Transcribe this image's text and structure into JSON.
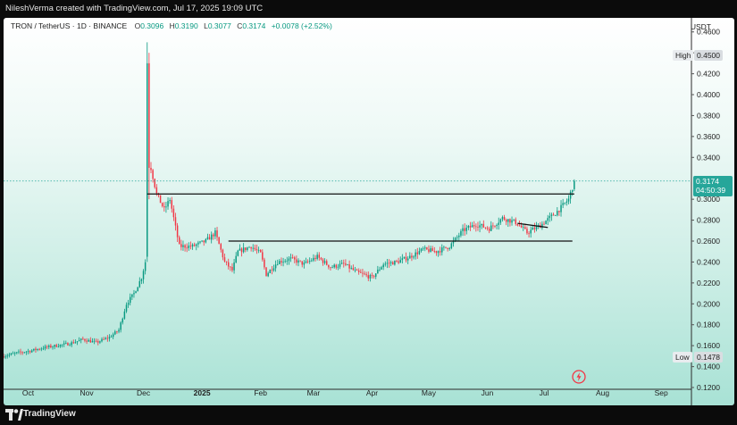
{
  "header": {
    "credit": "NileshVerma created with TradingView.com, Jul 17, 2025 19:09 UTC"
  },
  "legend": {
    "symbol": "TRON / TetherUS · 1D · BINANCE",
    "open_label": "O",
    "open": "0.3096",
    "high_label": "H",
    "high": "0.3190",
    "low_label": "L",
    "low": "0.3077",
    "close_label": "C",
    "close": "0.3174",
    "change": "+0.0078 (+2.52%)"
  },
  "price_axis": {
    "currency": "USDT",
    "ticks": [
      "0.4600",
      "0.4400",
      "0.4200",
      "0.4000",
      "0.3800",
      "0.3600",
      "0.3400",
      "0.3000",
      "0.2800",
      "0.2600",
      "0.2400",
      "0.2200",
      "0.2000",
      "0.1800",
      "0.1600",
      "0.1400",
      "0.1200"
    ]
  },
  "markers": {
    "high_label": "High",
    "high_value": "0.4500",
    "low_label": "Low",
    "low_value": "0.1478",
    "last_price": "0.3174",
    "countdown": "04:50:39"
  },
  "time_axis": {
    "ticks": [
      "Oct",
      "Nov",
      "Dec",
      "2025",
      "Feb",
      "Mar",
      "Apr",
      "May",
      "Jun",
      "Jul",
      "Aug",
      "Sep"
    ]
  },
  "footer": {
    "brand": "TradingView"
  },
  "colors": {
    "up": "#089981",
    "down": "#f23645",
    "last_price": "#26a69a"
  },
  "chart_data": {
    "type": "candlestick",
    "symbol": "TRON / TetherUS",
    "interval": "1D",
    "exchange": "BINANCE",
    "ylim": [
      0.12,
      0.47
    ],
    "x_start": "2024-09-18",
    "x_end": "2025-09-17",
    "last": {
      "date": "2025-07-17",
      "open": 0.3096,
      "high": 0.319,
      "low": 0.3077,
      "close": 0.3174,
      "change": 0.0078,
      "change_pct": 2.52
    },
    "period_high": 0.45,
    "period_low": 0.1478,
    "closes": [
      [
        "2024-09-18",
        0.15
      ],
      [
        "2024-09-25",
        0.153
      ],
      [
        "2024-10-02",
        0.155
      ],
      [
        "2024-10-09",
        0.158
      ],
      [
        "2024-10-16",
        0.16
      ],
      [
        "2024-10-23",
        0.162
      ],
      [
        "2024-10-30",
        0.166
      ],
      [
        "2024-11-06",
        0.163
      ],
      [
        "2024-11-13",
        0.168
      ],
      [
        "2024-11-18",
        0.175
      ],
      [
        "2024-11-22",
        0.2
      ],
      [
        "2024-11-26",
        0.21
      ],
      [
        "2024-11-30",
        0.225
      ],
      [
        "2024-12-02",
        0.24
      ],
      [
        "2024-12-03",
        0.44
      ],
      [
        "2024-12-05",
        0.33
      ],
      [
        "2024-12-08",
        0.305
      ],
      [
        "2024-12-12",
        0.29
      ],
      [
        "2024-12-15",
        0.3
      ],
      [
        "2024-12-20",
        0.255
      ],
      [
        "2024-12-27",
        0.255
      ],
      [
        "2025-01-03",
        0.26
      ],
      [
        "2025-01-08",
        0.268
      ],
      [
        "2025-01-13",
        0.24
      ],
      [
        "2025-01-17",
        0.232
      ],
      [
        "2025-01-20",
        0.25
      ],
      [
        "2025-01-27",
        0.255
      ],
      [
        "2025-02-01",
        0.248
      ],
      [
        "2025-02-04",
        0.228
      ],
      [
        "2025-02-10",
        0.24
      ],
      [
        "2025-02-17",
        0.243
      ],
      [
        "2025-02-24",
        0.238
      ],
      [
        "2025-03-03",
        0.245
      ],
      [
        "2025-03-10",
        0.235
      ],
      [
        "2025-03-17",
        0.238
      ],
      [
        "2025-03-24",
        0.23
      ],
      [
        "2025-04-01",
        0.225
      ],
      [
        "2025-04-07",
        0.238
      ],
      [
        "2025-04-14",
        0.24
      ],
      [
        "2025-04-21",
        0.245
      ],
      [
        "2025-04-28",
        0.252
      ],
      [
        "2025-05-05",
        0.25
      ],
      [
        "2025-05-12",
        0.255
      ],
      [
        "2025-05-19",
        0.27
      ],
      [
        "2025-05-26",
        0.276
      ],
      [
        "2025-06-02",
        0.272
      ],
      [
        "2025-06-09",
        0.282
      ],
      [
        "2025-06-16",
        0.278
      ],
      [
        "2025-06-22",
        0.268
      ],
      [
        "2025-06-29",
        0.275
      ],
      [
        "2025-07-06",
        0.285
      ],
      [
        "2025-07-10",
        0.292
      ],
      [
        "2025-07-14",
        0.3
      ],
      [
        "2025-07-17",
        0.3174
      ]
    ],
    "lines": [
      {
        "from_date": "2024-12-03",
        "to_date": "2025-07-17",
        "price": 0.305
      },
      {
        "from_date": "2025-01-15",
        "to_date": "2025-07-16",
        "price": 0.26
      },
      {
        "from_date": "2025-06-17",
        "to_date": "2025-07-03",
        "price_from": 0.277,
        "price_to": 0.273
      }
    ]
  }
}
